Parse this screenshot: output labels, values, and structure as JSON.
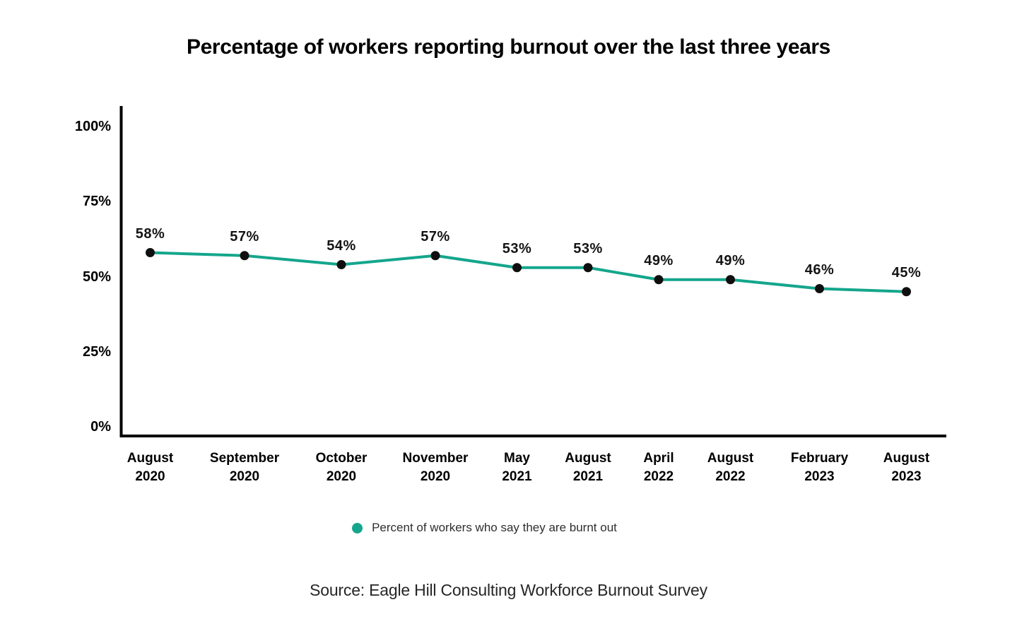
{
  "chart_data": {
    "type": "line",
    "title": "Percentage of workers reporting burnout over the last three years",
    "categories": [
      "August 2020",
      "September 2020",
      "October 2020",
      "November 2020",
      "May 2021",
      "August 2021",
      "April 2022",
      "August 2022",
      "February 2023",
      "August 2023"
    ],
    "values": [
      58,
      57,
      54,
      57,
      53,
      53,
      49,
      49,
      46,
      45
    ],
    "value_suffix": "%",
    "ylim": [
      0,
      100
    ],
    "y_ticks": [
      "0%",
      "25%",
      "50%",
      "75%",
      "100%"
    ],
    "grid": false,
    "xlabel": "",
    "ylabel": "",
    "line_color": "#14A68C",
    "marker_color": "#0f0f0f",
    "legend": {
      "position": "bottom",
      "label": "Percent of workers who say they are burnt out",
      "marker_color": "#14A68C"
    }
  },
  "source": "Source: Eagle Hill Consulting Workforce Burnout Survey"
}
